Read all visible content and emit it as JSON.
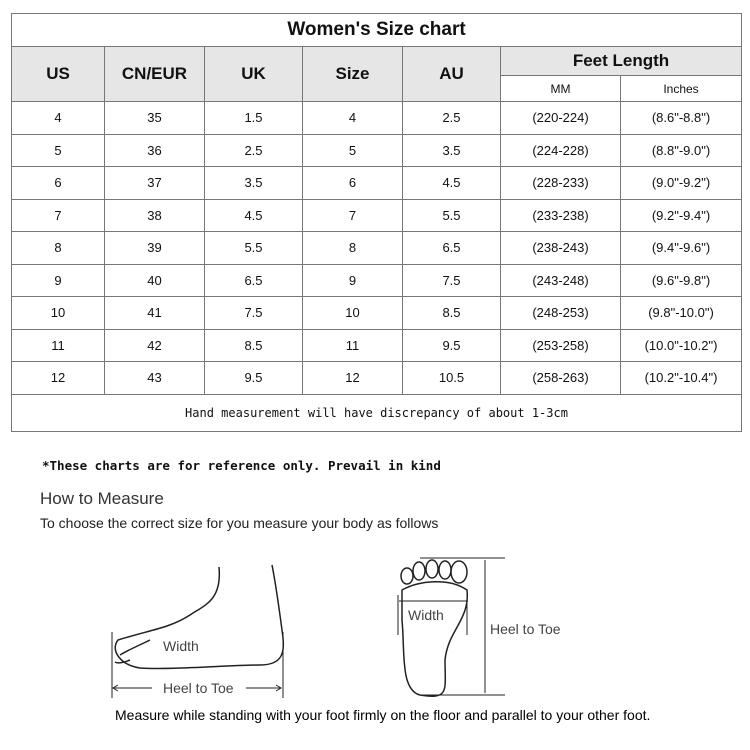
{
  "title": "Women's Size chart",
  "headers": [
    "US",
    "CN/EUR",
    "UK",
    "Size",
    "AU"
  ],
  "feet_length": {
    "label": "Feet Length",
    "sub": [
      "MM",
      "Inches"
    ]
  },
  "rows": [
    [
      "4",
      "35",
      "1.5",
      "4",
      "2.5",
      "(220-224)",
      "(8.6\"-8.8\")"
    ],
    [
      "5",
      "36",
      "2.5",
      "5",
      "3.5",
      "(224-228)",
      "(8.8\"-9.0\")"
    ],
    [
      "6",
      "37",
      "3.5",
      "6",
      "4.5",
      "(228-233)",
      "(9.0\"-9.2\")"
    ],
    [
      "7",
      "38",
      "4.5",
      "7",
      "5.5",
      "(233-238)",
      "(9.2\"-9.4\")"
    ],
    [
      "8",
      "39",
      "5.5",
      "8",
      "6.5",
      "(238-243)",
      "(9.4\"-9.6\")"
    ],
    [
      "9",
      "40",
      "6.5",
      "9",
      "7.5",
      "(243-248)",
      "(9.6\"-9.8\")"
    ],
    [
      "10",
      "41",
      "7.5",
      "10",
      "8.5",
      "(248-253)",
      "(9.8\"-10.0\")"
    ],
    [
      "11",
      "42",
      "8.5",
      "11",
      "9.5",
      "(253-258)",
      "(10.0\"-10.2\")"
    ],
    [
      "12",
      "43",
      "9.5",
      "12",
      "10.5",
      "(258-263)",
      "(10.2\"-10.4\")"
    ]
  ],
  "note": "Hand measurement will have discrepancy of about 1-3cm",
  "reference": "*These charts are for reference only. Prevail in kind",
  "how_to": {
    "title": "How to Measure",
    "subtitle": "To choose the correct size for you measure your body as follows",
    "side_labels": {
      "width": "Width",
      "heel_to_toe": "Heel to Toe"
    },
    "sole_labels": {
      "width": "Width",
      "heel_to_toe": "Heel to Toe"
    },
    "instruction": "Measure while standing with your foot firmly on the floor and parallel to your other foot."
  }
}
